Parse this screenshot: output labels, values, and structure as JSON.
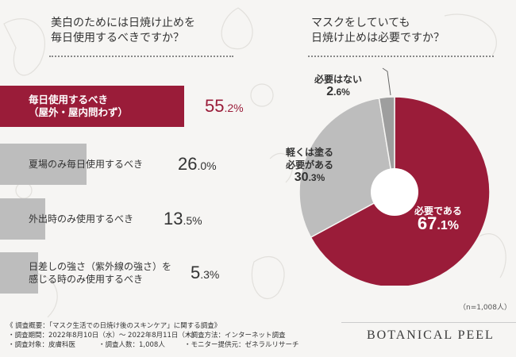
{
  "left_question": {
    "line1": "美白のためには日焼け止めを",
    "line2": "毎日使用するべきですか？"
  },
  "right_question": {
    "line1": "マスクをしていても",
    "line2": "日焼け止めは必要ですか？"
  },
  "colors": {
    "accent": "#9a1c39",
    "gray": "#bdbdbd",
    "gray_dark": "#9e9e9e",
    "background": "#f6f5f3"
  },
  "chart_data": [
    {
      "type": "bar",
      "orientation": "horizontal",
      "unit": "%",
      "categories": [
        "毎日使用するべき（屋外・屋内問わず）",
        "夏場のみ毎日使用するべき",
        "外出時のみ使用するべき",
        "日差しの強さ（紫外線の強さ）を感じる時のみ使用するべき"
      ],
      "label_lines": [
        [
          "毎日使用するべき",
          "（屋外・屋内問わず）"
        ],
        [
          "夏場のみ毎日使用するべき"
        ],
        [
          "外出時のみ使用するべき"
        ],
        [
          "日差しの強さ（紫外線の強さ）を",
          "感じる時のみ使用するべき"
        ]
      ],
      "values": [
        55.2,
        26.0,
        13.5,
        5.3
      ],
      "value_labels": [
        {
          "int": "55",
          "dec": ".2%"
        },
        {
          "int": "26",
          "dec": ".0%"
        },
        {
          "int": "13",
          "dec": ".5%"
        },
        {
          "int": "5",
          "dec": ".3%"
        }
      ]
    },
    {
      "type": "pie",
      "style": "donut",
      "slices": [
        {
          "label": "必要である",
          "label_lines": [
            "必要である"
          ],
          "value": 67.1,
          "value_int": "67",
          "value_dec": ".1%",
          "color": "#9a1c39"
        },
        {
          "label": "軽くは塗る必要がある",
          "label_lines": [
            "軽くは塗る",
            "必要がある"
          ],
          "value": 30.3,
          "value_int": "30",
          "value_dec": ".3%",
          "color": "#bdbdbd"
        },
        {
          "label": "必要はない",
          "label_lines": [
            "必要はない"
          ],
          "value": 2.6,
          "value_int": "2",
          "value_dec": ".6%",
          "color": "#9e9e9e"
        }
      ],
      "note": "（n=1,008人）"
    }
  ],
  "footer": {
    "line1": "《 調査概要：「マスク生活での日焼け後のスキンケア」に関する調査》",
    "period": "・調査期間：2022年8月10日（水）～ 2022年8月11日（木）",
    "method": "・調査方法：インターネット調査",
    "target": "・調査対象：皮膚科医",
    "count": "・調査人数：1,008人",
    "provider": "・モニター提供元：ゼネラルリサーチ"
  },
  "brand": "BOTANICAL PEEL"
}
